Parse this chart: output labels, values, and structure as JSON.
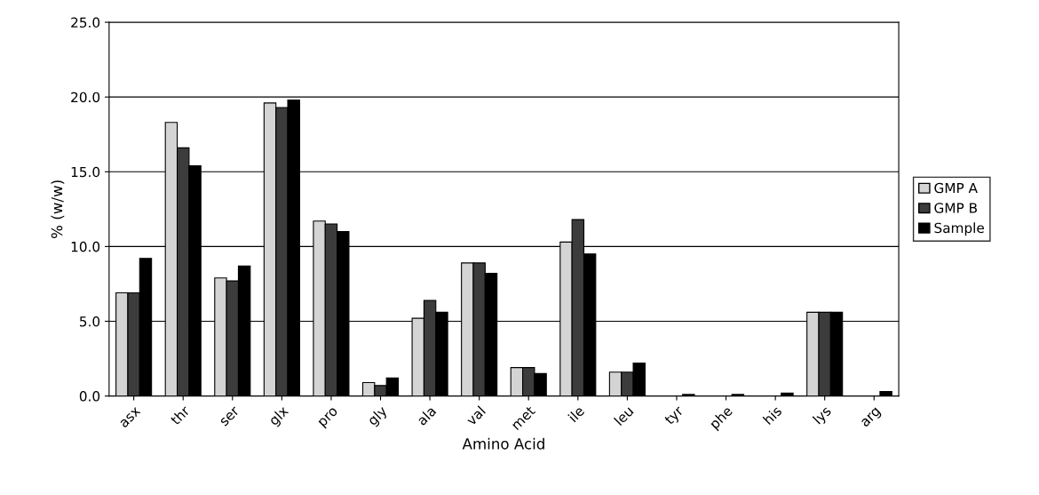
{
  "chart_data": {
    "type": "bar",
    "xlabel": "Amino Acid",
    "ylabel": "% (w/w)",
    "categories": [
      "asx",
      "thr",
      "ser",
      "glx",
      "pro",
      "gly",
      "ala",
      "val",
      "met",
      "ile",
      "leu",
      "tyr",
      "phe",
      "his",
      "lys",
      "arg"
    ],
    "series": [
      {
        "name": "GMP A",
        "color": "#d4d4d4",
        "values": [
          6.9,
          18.3,
          7.9,
          19.6,
          11.7,
          0.9,
          5.2,
          8.9,
          1.9,
          10.3,
          1.6,
          null,
          null,
          null,
          5.6,
          null
        ]
      },
      {
        "name": "GMP B",
        "color": "#3c3c3c",
        "values": [
          6.9,
          16.6,
          7.7,
          19.3,
          11.5,
          0.7,
          6.4,
          8.9,
          1.9,
          11.8,
          1.6,
          null,
          null,
          null,
          5.6,
          null
        ]
      },
      {
        "name": "Sample",
        "color": "#000000",
        "values": [
          9.2,
          15.4,
          8.7,
          19.8,
          11.0,
          1.2,
          5.6,
          8.2,
          1.5,
          9.5,
          2.2,
          0.1,
          0.1,
          0.2,
          5.6,
          0.3
        ]
      }
    ],
    "ylim": [
      0,
      25
    ],
    "yticks": [
      {
        "value": 0,
        "label": "0.0"
      },
      {
        "value": 5,
        "label": "5.0"
      },
      {
        "value": 10,
        "label": "10.0"
      },
      {
        "value": 15,
        "label": "15.0"
      },
      {
        "value": 20,
        "label": "20.0"
      },
      {
        "value": 25,
        "label": "25.0"
      }
    ],
    "grid": "y",
    "legend": "right"
  }
}
